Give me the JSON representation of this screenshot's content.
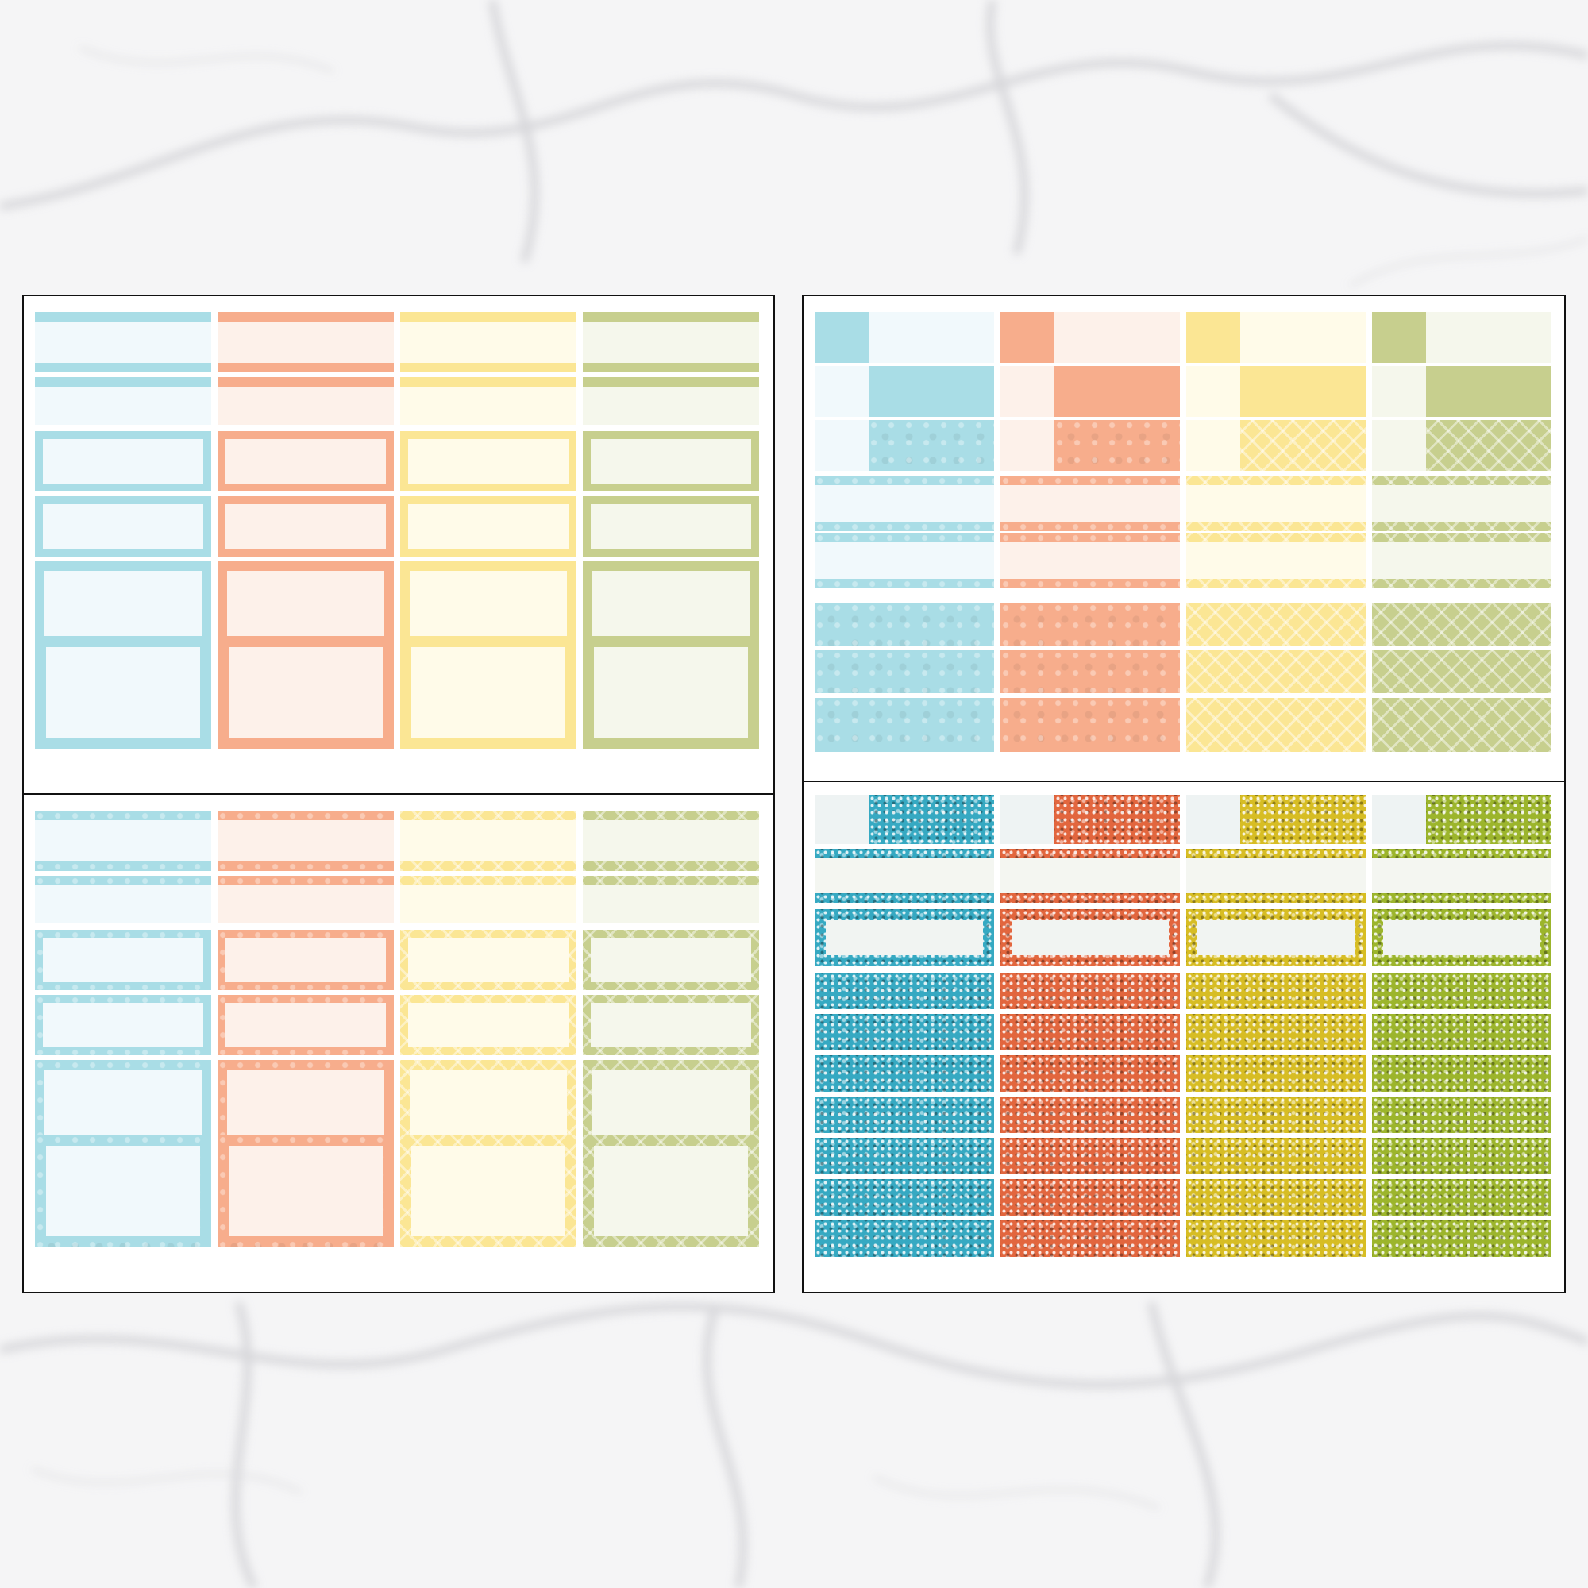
{
  "colors": {
    "blue": {
      "main": "#a9dde6",
      "light": "#f1f9fc",
      "pattern": "#8ccfdd",
      "glitter": "#36a9c2"
    },
    "coral": {
      "main": "#f7ad8c",
      "light": "#fdf1ea",
      "pattern": "#f49a78",
      "glitter": "#e2663e"
    },
    "yellow": {
      "main": "#fbe694",
      "light": "#fffbe9",
      "pattern": "#f9dc7b",
      "glitter": "#d7bd24"
    },
    "green": {
      "main": "#c7cf8e",
      "light": "#f5f7ec",
      "pattern": "#b9c57a",
      "glitter": "#9cb52c"
    }
  },
  "background": {
    "type": "marble",
    "base": "#f4f4f5",
    "vein": "#d9d9dc"
  },
  "sheets": [
    {
      "id": "solid-boxes",
      "style": "solid",
      "layout": "boxes"
    },
    {
      "id": "patterned-boxes",
      "style": "pattern",
      "layout": "boxes"
    },
    {
      "id": "patterned-blocks",
      "style": "pattern",
      "layout": "blocks"
    },
    {
      "id": "glitter-strips",
      "style": "glitter",
      "layout": "strips"
    }
  ]
}
